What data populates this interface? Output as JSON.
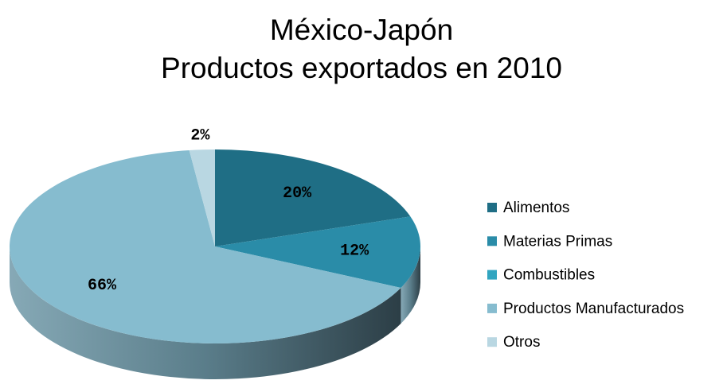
{
  "chart_data": {
    "type": "pie",
    "title": [
      "México-Japón",
      "Productos exportados en 2010"
    ],
    "categories": [
      "Alimentos",
      "Materias Primas",
      "Combustibles",
      "Productos Manufacturados",
      "Otros"
    ],
    "values": [
      20,
      12,
      0,
      66,
      2
    ],
    "value_labels": [
      "20%",
      "12%",
      null,
      "66%",
      "2%"
    ],
    "colors": [
      "#1f6e85",
      "#2a8ca8",
      "#31a5c0",
      "#86bccf",
      "#b9d7e2"
    ],
    "legend": "right"
  }
}
